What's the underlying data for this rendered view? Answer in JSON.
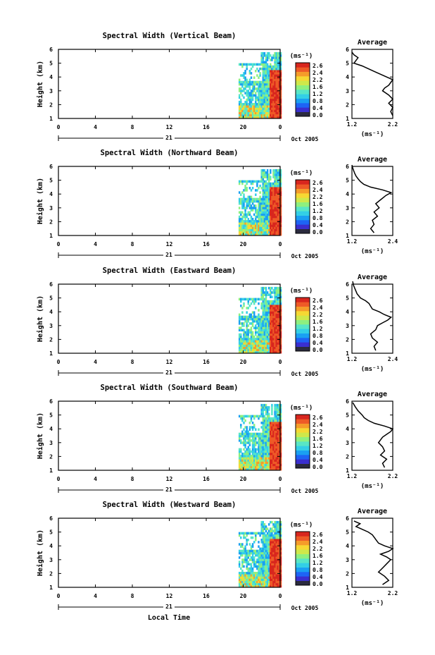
{
  "figure": {
    "x_title": "Local Time",
    "day_label": "21",
    "date_label": "Oct 2005",
    "height_axis_label": "Height (km)",
    "unit_label": "(ms⁻¹)",
    "avg_title": "Average",
    "x_ticks": [
      "0",
      "4",
      "8",
      "12",
      "16",
      "20",
      "0"
    ],
    "y_ticks": [
      "1",
      "2",
      "3",
      "4",
      "5",
      "6"
    ]
  },
  "colors": {
    "scale": [
      "#2b2b3f",
      "#3a2fd0",
      "#1e64f5",
      "#1aa0f2",
      "#33cfe6",
      "#58e6c6",
      "#8ef07f",
      "#cfe84a",
      "#f6d833",
      "#f59c2a",
      "#ee5a27",
      "#d8261e"
    ],
    "no_data": "#ffffff"
  },
  "chart_data": [
    {
      "type": "heatmap",
      "title": "Spectral Width (Vertical Beam)",
      "xlabel": "",
      "ylabel": "Height (km)",
      "xlim": [
        0,
        24
      ],
      "ylim": [
        1,
        6
      ],
      "data_range_x": [
        19.5,
        24
      ],
      "colorbar": {
        "ticks": [
          "2.6",
          "2.4",
          "2.2",
          "1.6",
          "1.2",
          "0.8",
          "0.4",
          "0.0"
        ]
      },
      "average_profile": {
        "title": "Average",
        "xlabel": "(ms⁻¹)",
        "x_ticks": [
          "1.2",
          "2.2"
        ],
        "xlim": [
          1.2,
          2.2
        ],
        "ylim": [
          1,
          6
        ],
        "height": [
          1.2,
          1.5,
          1.8,
          2.1,
          2.4,
          2.7,
          3.0,
          3.2,
          3.4,
          3.6,
          3.8,
          4.0,
          4.2,
          4.4,
          4.6,
          4.8,
          5.0,
          5.2,
          5.4,
          5.6,
          5.8
        ],
        "value": [
          2.2,
          2.15,
          2.2,
          2.1,
          2.2,
          2.1,
          1.95,
          2.0,
          2.1,
          2.15,
          2.2,
          2.05,
          1.9,
          1.75,
          1.6,
          1.45,
          1.25,
          1.3,
          1.35,
          1.25,
          1.2
        ]
      }
    },
    {
      "type": "heatmap",
      "title": "Spectral Width (Northward Beam)",
      "xlabel": "",
      "ylabel": "Height (km)",
      "xlim": [
        0,
        24
      ],
      "ylim": [
        1,
        6
      ],
      "data_range_x": [
        19.5,
        24
      ],
      "colorbar": {
        "ticks": [
          "2.6",
          "2.4",
          "2.2",
          "1.6",
          "1.2",
          "0.8",
          "0.4",
          "0.0"
        ]
      },
      "average_profile": {
        "title": "Average",
        "xlabel": "(ms⁻¹)",
        "x_ticks": [
          "1.2",
          "2.4"
        ],
        "xlim": [
          1.2,
          2.4
        ],
        "ylim": [
          1,
          6
        ],
        "height": [
          1.2,
          1.5,
          1.8,
          2.1,
          2.4,
          2.7,
          3.0,
          3.3,
          3.6,
          3.9,
          4.1,
          4.3,
          4.5,
          4.7,
          4.9,
          5.1,
          5.3,
          5.5,
          5.7,
          5.9,
          6.1
        ],
        "value": [
          1.85,
          1.75,
          1.85,
          1.8,
          1.95,
          1.85,
          2.0,
          1.9,
          2.05,
          2.2,
          2.35,
          2.1,
          1.75,
          1.55,
          1.45,
          1.38,
          1.32,
          1.28,
          1.25,
          1.22,
          1.2
        ]
      }
    },
    {
      "type": "heatmap",
      "title": "Spectral Width (Eastward Beam)",
      "xlabel": "",
      "ylabel": "Height (km)",
      "xlim": [
        0,
        24
      ],
      "ylim": [
        1,
        6
      ],
      "data_range_x": [
        19.5,
        24
      ],
      "colorbar": {
        "ticks": [
          "2.6",
          "2.4",
          "2.2",
          "1.6",
          "1.2",
          "0.8",
          "0.4",
          "0.0"
        ]
      },
      "average_profile": {
        "title": "Average",
        "xlabel": "(ms⁻¹)",
        "x_ticks": [
          "1.2",
          "2.4"
        ],
        "xlim": [
          1.2,
          2.4
        ],
        "ylim": [
          1,
          6
        ],
        "height": [
          1.2,
          1.5,
          1.8,
          2.1,
          2.4,
          2.7,
          3.0,
          3.2,
          3.4,
          3.6,
          3.8,
          4.0,
          4.2,
          4.4,
          4.6,
          4.8,
          5.0,
          5.3,
          5.6,
          5.9,
          6.2
        ],
        "value": [
          1.9,
          1.85,
          1.95,
          1.8,
          1.75,
          1.9,
          1.95,
          2.1,
          2.25,
          2.35,
          2.15,
          2.0,
          1.8,
          1.75,
          1.7,
          1.6,
          1.45,
          1.35,
          1.3,
          1.25,
          1.22
        ]
      }
    },
    {
      "type": "heatmap",
      "title": "Spectral Width (Southward Beam)",
      "xlabel": "",
      "ylabel": "Height (km)",
      "xlim": [
        0,
        24
      ],
      "ylim": [
        1,
        6
      ],
      "data_range_x": [
        19.5,
        24
      ],
      "colorbar": {
        "ticks": [
          "2.6",
          "2.4",
          "2.2",
          "1.6",
          "1.2",
          "0.8",
          "0.4",
          "0.0"
        ]
      },
      "average_profile": {
        "title": "Average",
        "xlabel": "(ms⁻¹)",
        "x_ticks": [
          "1.2",
          "2.2"
        ],
        "xlim": [
          1.2,
          2.2
        ],
        "ylim": [
          1,
          6
        ],
        "height": [
          1.2,
          1.5,
          1.8,
          2.1,
          2.4,
          2.7,
          3.0,
          3.2,
          3.4,
          3.6,
          3.8,
          4.0,
          4.2,
          4.4,
          4.6,
          4.8,
          5.0,
          5.3,
          5.6,
          5.9
        ],
        "value": [
          2.0,
          1.95,
          2.05,
          1.9,
          2.0,
          1.95,
          1.85,
          1.9,
          1.95,
          2.05,
          2.15,
          2.2,
          2.0,
          1.75,
          1.6,
          1.5,
          1.45,
          1.35,
          1.28,
          1.22
        ]
      }
    },
    {
      "type": "heatmap",
      "title": "Spectral Width (Westward Beam)",
      "xlabel": "Local Time",
      "ylabel": "Height (km)",
      "xlim": [
        0,
        24
      ],
      "ylim": [
        1,
        6
      ],
      "data_range_x": [
        19.5,
        24
      ],
      "colorbar": {
        "ticks": [
          "2.6",
          "2.4",
          "2.2",
          "1.6",
          "1.2",
          "0.8",
          "0.4",
          "0.0"
        ]
      },
      "average_profile": {
        "title": "Average",
        "xlabel": "(ms⁻¹)",
        "x_ticks": [
          "1.2",
          "2.2"
        ],
        "xlim": [
          1.2,
          2.2
        ],
        "ylim": [
          1,
          6
        ],
        "height": [
          1.2,
          1.5,
          1.8,
          2.1,
          2.4,
          2.7,
          3.0,
          3.2,
          3.4,
          3.6,
          3.8,
          4.0,
          4.2,
          4.4,
          4.6,
          4.8,
          5.0,
          5.2,
          5.4,
          5.6,
          5.8
        ],
        "value": [
          1.95,
          2.1,
          2.0,
          1.85,
          1.95,
          2.05,
          2.15,
          2.05,
          1.9,
          2.1,
          2.2,
          2.0,
          1.85,
          1.8,
          1.75,
          1.7,
          1.6,
          1.45,
          1.3,
          1.4,
          1.25
        ]
      }
    }
  ]
}
